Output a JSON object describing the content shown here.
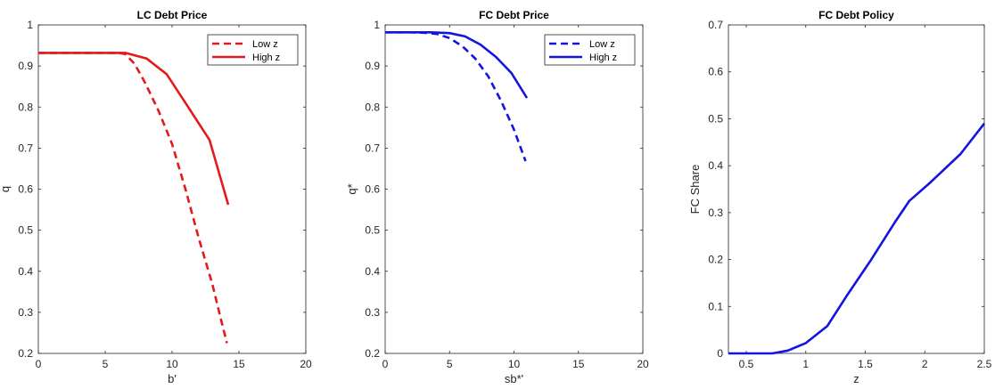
{
  "chart_data": [
    {
      "type": "line",
      "title": "LC Debt Price",
      "xlabel": "b'",
      "ylabel": "q",
      "xlim": [
        0,
        20
      ],
      "ylim": [
        0.2,
        1
      ],
      "xticks": [
        "0",
        "5",
        "10",
        "15",
        "20"
      ],
      "yticks": [
        "0.2",
        "0.3",
        "0.4",
        "0.5",
        "0.6",
        "0.7",
        "0.8",
        "0.9",
        "1"
      ],
      "xtick_values": [
        0,
        5,
        10,
        15,
        20
      ],
      "ytick_values": [
        0.2,
        0.3,
        0.4,
        0.5,
        0.6,
        0.7,
        0.8,
        0.9,
        1.0
      ],
      "legend": "top-right",
      "grid": false,
      "series": [
        {
          "name": "Low z",
          "color": "#e41a1a",
          "style": "dashed",
          "x": [
            0,
            2,
            4,
            6,
            6.5,
            7.2,
            8,
            9,
            10,
            11,
            12,
            13,
            13.6,
            14.1
          ],
          "y": [
            0.932,
            0.932,
            0.932,
            0.932,
            0.929,
            0.905,
            0.858,
            0.79,
            0.71,
            0.6,
            0.48,
            0.37,
            0.29,
            0.225
          ]
        },
        {
          "name": "High z",
          "color": "#e41a1a",
          "style": "solid",
          "x": [
            0,
            2,
            4,
            6.5,
            8.1,
            9.6,
            11.2,
            12.8,
            14.2
          ],
          "y": [
            0.932,
            0.932,
            0.932,
            0.932,
            0.918,
            0.88,
            0.8,
            0.72,
            0.562
          ]
        }
      ]
    },
    {
      "type": "line",
      "title": "FC Debt Price",
      "xlabel": "sb*'",
      "ylabel": "q*",
      "xlim": [
        0,
        20
      ],
      "ylim": [
        0.2,
        1
      ],
      "xticks": [
        "0",
        "5",
        "10",
        "15",
        "20"
      ],
      "yticks": [
        "0.2",
        "0.3",
        "0.4",
        "0.5",
        "0.6",
        "0.7",
        "0.8",
        "0.9",
        "1"
      ],
      "xtick_values": [
        0,
        5,
        10,
        15,
        20
      ],
      "ytick_values": [
        0.2,
        0.3,
        0.4,
        0.5,
        0.6,
        0.7,
        0.8,
        0.9,
        1.0
      ],
      "legend": "top-right",
      "grid": false,
      "series": [
        {
          "name": "Low z",
          "color": "#1414e0",
          "style": "dashed",
          "x": [
            0,
            2,
            3,
            4,
            5,
            6,
            7,
            8,
            9,
            10,
            10.9
          ],
          "y": [
            0.982,
            0.982,
            0.981,
            0.978,
            0.968,
            0.948,
            0.918,
            0.875,
            0.815,
            0.745,
            0.668
          ]
        },
        {
          "name": "High z",
          "color": "#1414e0",
          "style": "solid",
          "x": [
            0,
            2,
            3.5,
            5,
            6.2,
            7.4,
            8.6,
            9.8,
            11
          ],
          "y": [
            0.982,
            0.982,
            0.982,
            0.98,
            0.972,
            0.952,
            0.922,
            0.883,
            0.822
          ]
        }
      ]
    },
    {
      "type": "line",
      "title": "FC Debt Policy",
      "xlabel": "z",
      "ylabel": "FC Share",
      "xlim": [
        0.35,
        2.5
      ],
      "ylim": [
        0,
        0.7
      ],
      "xticks": [
        "0.5",
        "1",
        "1.5",
        "2",
        "2.5"
      ],
      "yticks": [
        "0",
        "0.1",
        "0.2",
        "0.3",
        "0.4",
        "0.5",
        "0.6",
        "0.7"
      ],
      "xtick_values": [
        0.5,
        1,
        1.5,
        2,
        2.5
      ],
      "ytick_values": [
        0,
        0.1,
        0.2,
        0.3,
        0.4,
        0.5,
        0.6,
        0.7
      ],
      "grid": false,
      "series": [
        {
          "color": "#1414e0",
          "style": "solid",
          "x": [
            0.35,
            0.5,
            0.6,
            0.72,
            0.85,
            1.0,
            1.18,
            1.35,
            1.55,
            1.75,
            1.87,
            2.05,
            2.3,
            2.5
          ],
          "y": [
            0,
            0,
            0,
            0,
            0.006,
            0.022,
            0.058,
            0.125,
            0.2,
            0.28,
            0.325,
            0.365,
            0.425,
            0.49
          ]
        }
      ]
    }
  ]
}
